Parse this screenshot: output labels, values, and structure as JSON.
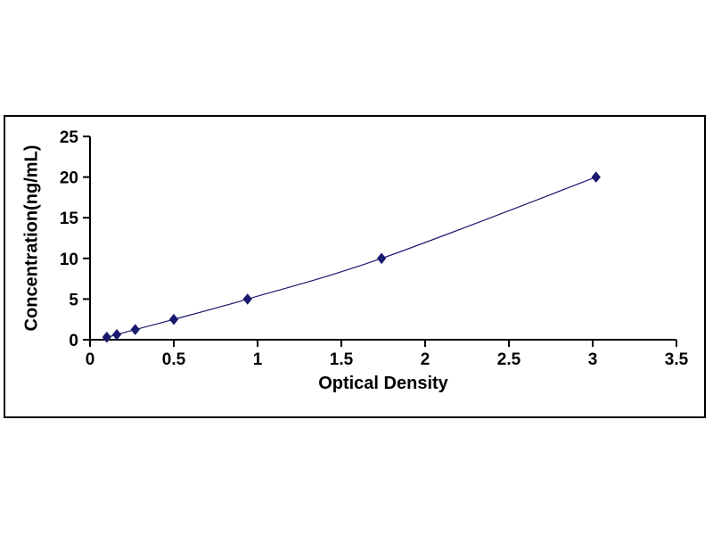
{
  "chart_data": {
    "type": "line",
    "title": "",
    "xlabel": "Optical Density",
    "ylabel": "Concentration(ng/mL)",
    "x": [
      0.1,
      0.16,
      0.27,
      0.5,
      0.94,
      1.74,
      3.02
    ],
    "y": [
      0.31,
      0.63,
      1.25,
      2.5,
      5,
      10,
      20
    ],
    "xlim": [
      0,
      3.5
    ],
    "ylim": [
      0,
      25
    ],
    "x_ticks": [
      0,
      0.5,
      1,
      1.5,
      2,
      2.5,
      3,
      3.5
    ],
    "x_tick_labels": [
      "0",
      "0.5",
      "1",
      "1.5",
      "2",
      "2.5",
      "3",
      "3.5"
    ],
    "y_ticks": [
      0,
      5,
      10,
      15,
      20,
      25
    ],
    "y_tick_labels": [
      "0",
      "5",
      "10",
      "15",
      "20",
      "25"
    ],
    "line_color": "#191970",
    "marker": "diamond",
    "marker_color": "#191970",
    "axis_color": "#000000",
    "grid": false,
    "legend": null
  }
}
